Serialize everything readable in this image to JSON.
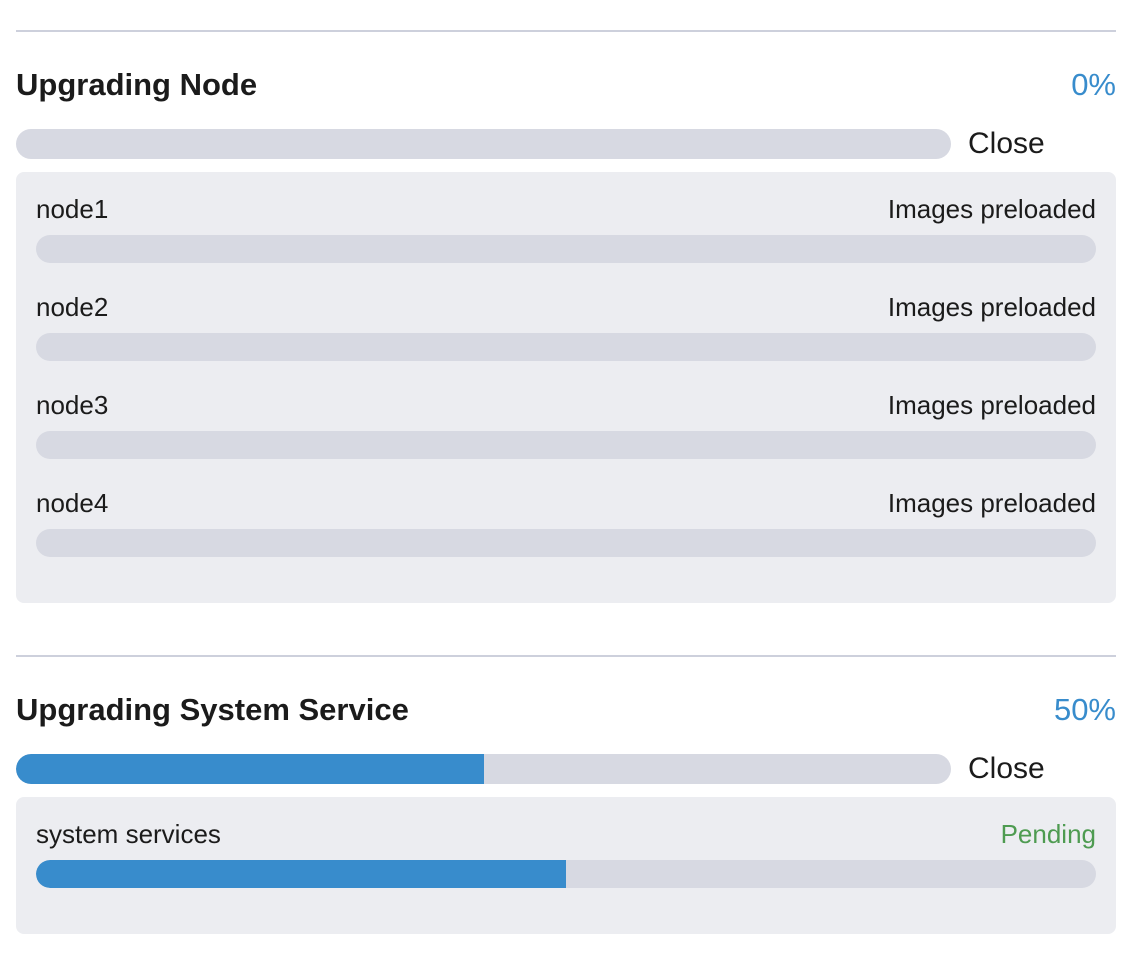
{
  "colors": {
    "accent_blue": "#388ccc",
    "progress_track": "#d7d9e2",
    "panel_bg": "#ecedf1",
    "divider": "#cdd0dc",
    "text_dark": "#1b1b1b",
    "success_green": "#4e9b51",
    "page_bg": "#ffffff"
  },
  "sections": [
    {
      "title": "Upgrading Node",
      "percent_label": "0%",
      "percent_value": 0,
      "close_label": "Close",
      "items": [
        {
          "name": "node1",
          "status": "Images preloaded",
          "status_style": "default",
          "progress": 0
        },
        {
          "name": "node2",
          "status": "Images preloaded",
          "status_style": "default",
          "progress": 0
        },
        {
          "name": "node3",
          "status": "Images preloaded",
          "status_style": "default",
          "progress": 0
        },
        {
          "name": "node4",
          "status": "Images preloaded",
          "status_style": "default",
          "progress": 0
        }
      ]
    },
    {
      "title": "Upgrading System Service",
      "percent_label": "50%",
      "percent_value": 50,
      "close_label": "Close",
      "items": [
        {
          "name": "system services",
          "status": "Pending",
          "status_style": "success",
          "progress": 50
        }
      ]
    }
  ]
}
